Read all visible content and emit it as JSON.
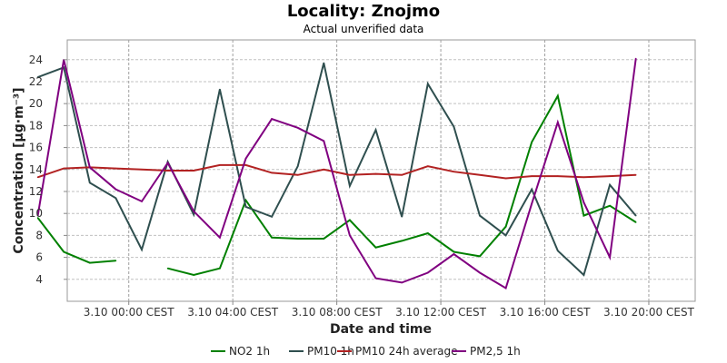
{
  "chart_data": {
    "type": "line",
    "title": "Locality: Znojmo",
    "subtitle": "Actual unverified data",
    "xlabel": "Date and time",
    "ylabel": "Concentration [µg·m⁻³]",
    "ylim": [
      2,
      25.8
    ],
    "y_ticks": [
      4,
      6,
      8,
      10,
      12,
      14,
      16,
      18,
      20,
      22,
      24
    ],
    "x_range": [
      "3.10 22:22",
      "3.10 21:47"
    ],
    "x_ticks": [
      {
        "t": 120,
        "label": "3.10 00:00 CEST"
      },
      {
        "t": 360,
        "label": "3.10 04:00 CEST"
      },
      {
        "t": 600,
        "label": "3.10 08:00 CEST"
      },
      {
        "t": 840,
        "label": "3.10 12:00 CEST"
      },
      {
        "t": 1080,
        "label": "3.10 16:00 CEST"
      },
      {
        "t": 1320,
        "label": "3.10 20:00 CEST"
      }
    ],
    "x_minutes_start": -22,
    "x_minutes_end": 1427,
    "x_hours": [
      -1.5,
      -0.5,
      0.5,
      1.5,
      2.5,
      3.5,
      4.5,
      5.5,
      6.5,
      7.5,
      8.5,
      9.5,
      10.5,
      11.5,
      12.5,
      13.5,
      14.5,
      15.5,
      16.5,
      17.5,
      18.5,
      19.5,
      20.5,
      21.5
    ],
    "grid": true,
    "legend": "bottom",
    "series": [
      {
        "name": "NO2 1h",
        "color": "#008000",
        "values": [
          9.6,
          6.5,
          5.5,
          5.7,
          null,
          5.0,
          4.4,
          5.0,
          11.2,
          7.8,
          7.7,
          7.7,
          9.4,
          6.9,
          7.5,
          8.2,
          6.5,
          6.1,
          8.8,
          16.5,
          20.7,
          9.8,
          10.7,
          9.2
        ]
      },
      {
        "name": "PM10 1h",
        "color": "#2f4f4f",
        "values": [
          22.4,
          23.3,
          12.8,
          11.4,
          6.7,
          14.7,
          9.9,
          21.3,
          10.6,
          9.7,
          14.3,
          23.7,
          12.5,
          17.6,
          9.7,
          21.8,
          17.9,
          9.8,
          8.0,
          12.2,
          6.6,
          4.4,
          12.6,
          9.8
        ]
      },
      {
        "name": "PM10 24h average",
        "color": "#b22222",
        "values": [
          13.3,
          14.1,
          14.2,
          14.1,
          14.0,
          13.9,
          13.9,
          14.4,
          14.4,
          13.7,
          13.5,
          14.0,
          13.5,
          13.6,
          13.5,
          14.3,
          13.8,
          13.5,
          13.2,
          13.4,
          13.4,
          13.3,
          13.4,
          13.5
        ]
      },
      {
        "name": "PM2,5 1h",
        "color": "#800080",
        "values": [
          9.8,
          24.0,
          14.2,
          12.2,
          11.1,
          14.6,
          10.2,
          7.8,
          15.0,
          18.6,
          17.8,
          16.6,
          8.0,
          4.1,
          3.7,
          4.6,
          6.3,
          4.6,
          3.2,
          10.9,
          18.3,
          11.0,
          6.0,
          24.1
        ]
      }
    ]
  }
}
